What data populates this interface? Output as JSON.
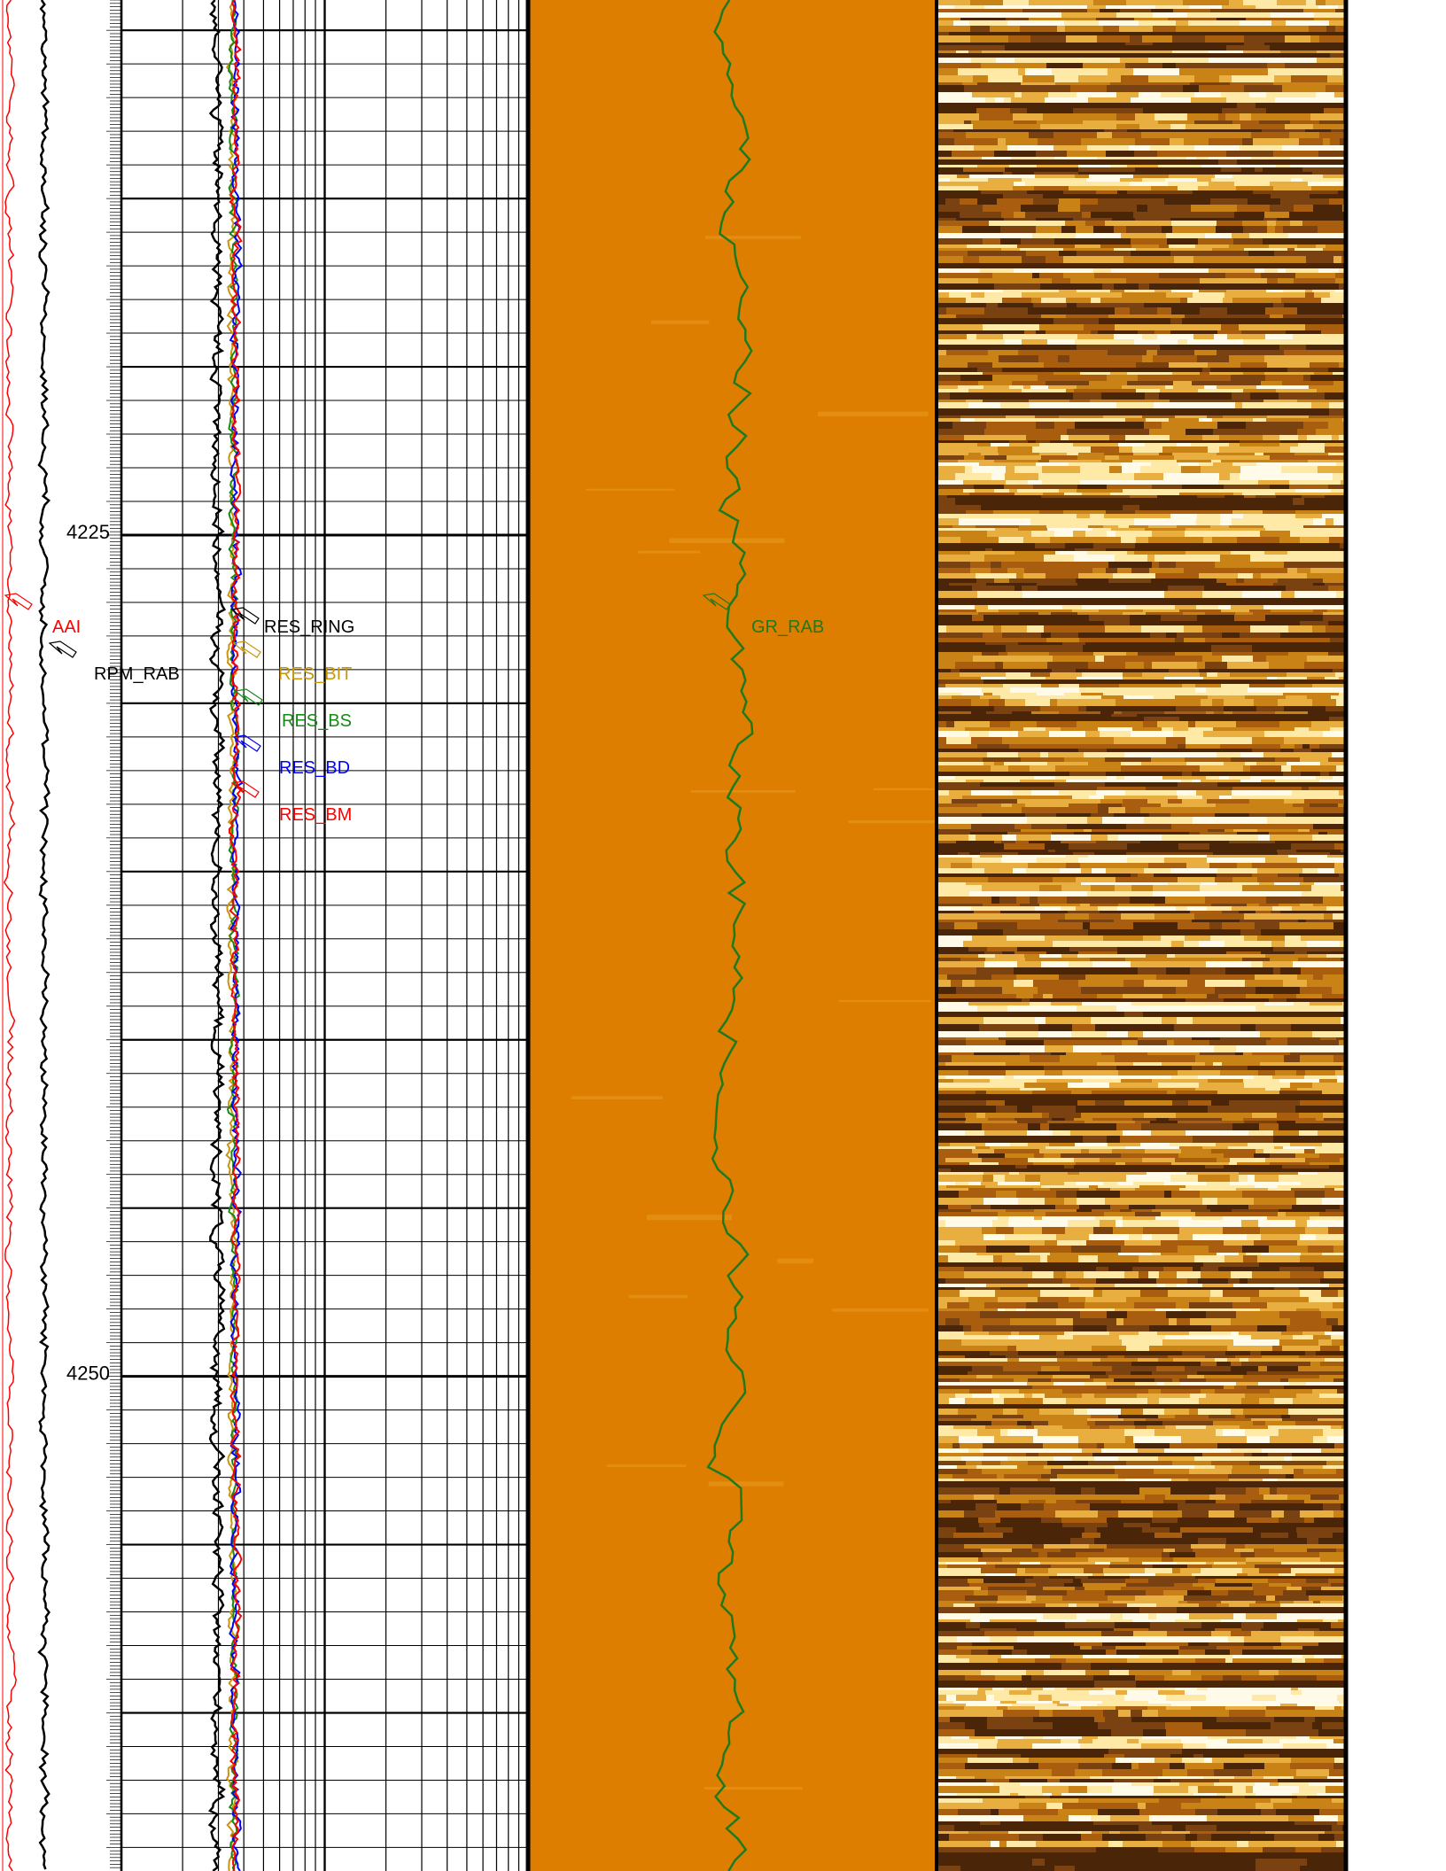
{
  "chart_data": {
    "type": "line",
    "description_kind": "well log display",
    "depth_ticks": [
      {
        "label": "4225",
        "value": 4225
      },
      {
        "label": "4250",
        "value": 4250
      }
    ],
    "depth_range": [
      4209.1,
      4264.7
    ],
    "tracks": [
      {
        "id": "track-1",
        "curves": [
          {
            "name": "AAI",
            "color": "#ff0000"
          },
          {
            "name": "RPM_RAB",
            "color": "#000000"
          }
        ]
      },
      {
        "id": "track-2",
        "scale": "log",
        "grid": true,
        "curves": [
          {
            "name": "RES_RING",
            "color": "#000000"
          },
          {
            "name": "RES_BIT",
            "color": "#c8960a"
          },
          {
            "name": "RES_BS",
            "color": "#158a15"
          },
          {
            "name": "RES_BD",
            "color": "#0000ff"
          },
          {
            "name": "RES_BM",
            "color": "#ff0000"
          }
        ]
      },
      {
        "id": "track-3",
        "background": "#dd7e00",
        "curves": [
          {
            "name": "GR_RAB",
            "color": "#1f7a1f"
          }
        ]
      },
      {
        "id": "track-4",
        "type": "heatmap",
        "description": "resistivity image, brown-to-white color map"
      }
    ],
    "colors": {
      "image_dark": "#4a2508",
      "image_mid": "#c98215",
      "image_light": "#ffe9a6",
      "image_white": "#fffbe8",
      "track3_fill": "#dd7e00"
    }
  }
}
